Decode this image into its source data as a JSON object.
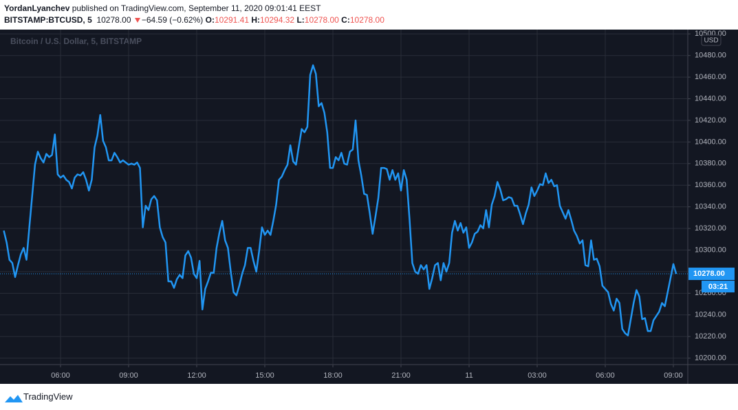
{
  "header": {
    "author": "YordanLyanchev",
    "published": "published on TradingView.com, September 11, 2020 09:01:41 EEST",
    "symbol": "BITSTAMP:BTCUSD, 5",
    "last": "10278.00",
    "change": "−64.59 (−0.62%)",
    "ohlc": [
      {
        "key": "O:",
        "value": "10291.41"
      },
      {
        "key": "H:",
        "value": "10294.32"
      },
      {
        "key": "L:",
        "value": "10278.00"
      },
      {
        "key": "C:",
        "value": "10278.00"
      }
    ]
  },
  "footer": "TradingView",
  "chart_data": {
    "type": "line",
    "watermark": "Bitcoin / U.S. Dollar, 5, BITSTAMP",
    "currency": "USD",
    "color": "#2196f3",
    "grid": true,
    "last_price": {
      "value": 10278,
      "label": "10278.00"
    },
    "countdown": "03:21",
    "xlim": [
      3.333,
      33.636
    ],
    "ylim": [
      10194,
      10504
    ],
    "xticks": [
      {
        "value": 6,
        "label": "06:00"
      },
      {
        "value": 9,
        "label": "09:00"
      },
      {
        "value": 12,
        "label": "12:00"
      },
      {
        "value": 15,
        "label": "15:00"
      },
      {
        "value": 18,
        "label": "18:00"
      },
      {
        "value": 21,
        "label": "21:00"
      },
      {
        "value": 24,
        "label": "11"
      },
      {
        "value": 27,
        "label": "03:00"
      },
      {
        "value": 30,
        "label": "06:00"
      },
      {
        "value": 33,
        "label": "09:00"
      }
    ],
    "yticks": [
      {
        "value": 10200,
        "label": "10200.00"
      },
      {
        "value": 10220,
        "label": "10220.00"
      },
      {
        "value": 10240,
        "label": "10240.00"
      },
      {
        "value": 10260,
        "label": "10260.00"
      },
      {
        "value": 10280,
        "label": "10280.00"
      },
      {
        "value": 10300,
        "label": "10300.00"
      },
      {
        "value": 10320,
        "label": "10320.00"
      },
      {
        "value": 10340,
        "label": "10340.00"
      },
      {
        "value": 10360,
        "label": "10360.00"
      },
      {
        "value": 10380,
        "label": "10380.00"
      },
      {
        "value": 10400,
        "label": "10400.00"
      },
      {
        "value": 10420,
        "label": "10420.00"
      },
      {
        "value": 10440,
        "label": "10440.00"
      },
      {
        "value": 10460,
        "label": "10460.00"
      },
      {
        "value": 10480,
        "label": "10480.00"
      },
      {
        "value": 10500,
        "label": "10500.00"
      }
    ],
    "x": [
      3.5,
      3.625,
      3.75,
      3.875,
      4,
      4.125,
      4.25,
      4.375,
      4.5,
      4.625,
      4.75,
      4.875,
      5,
      5.125,
      5.25,
      5.375,
      5.5,
      5.625,
      5.75,
      5.875,
      6,
      6.125,
      6.25,
      6.375,
      6.5,
      6.625,
      6.75,
      6.875,
      7,
      7.125,
      7.25,
      7.375,
      7.5,
      7.625,
      7.75,
      7.875,
      8,
      8.125,
      8.25,
      8.375,
      8.5,
      8.625,
      8.75,
      8.875,
      9,
      9.125,
      9.25,
      9.375,
      9.5,
      9.625,
      9.75,
      9.875,
      10,
      10.125,
      10.25,
      10.375,
      10.5,
      10.625,
      10.75,
      10.875,
      11,
      11.125,
      11.25,
      11.375,
      11.5,
      11.625,
      11.75,
      11.875,
      12,
      12.125,
      12.25,
      12.375,
      12.5,
      12.625,
      12.75,
      12.875,
      13,
      13.125,
      13.25,
      13.375,
      13.5,
      13.625,
      13.75,
      13.875,
      14,
      14.125,
      14.25,
      14.375,
      14.5,
      14.625,
      14.75,
      14.875,
      15,
      15.125,
      15.25,
      15.375,
      15.5,
      15.625,
      15.75,
      15.875,
      16,
      16.125,
      16.25,
      16.375,
      16.5,
      16.625,
      16.75,
      16.875,
      17,
      17.125,
      17.25,
      17.375,
      17.5,
      17.625,
      17.75,
      17.875,
      18,
      18.125,
      18.25,
      18.375,
      18.5,
      18.625,
      18.75,
      18.875,
      19,
      19.125,
      19.25,
      19.375,
      19.5,
      19.625,
      19.75,
      19.875,
      20,
      20.125,
      20.25,
      20.375,
      20.5,
      20.625,
      20.75,
      20.875,
      21,
      21.125,
      21.25,
      21.375,
      21.5,
      21.625,
      21.75,
      21.875,
      22,
      22.125,
      22.25,
      22.375,
      22.5,
      22.625,
      22.75,
      22.875,
      23,
      23.125,
      23.25,
      23.375,
      23.5,
      23.625,
      23.75,
      23.875,
      24,
      24.125,
      24.25,
      24.375,
      24.5,
      24.625,
      24.75,
      24.875,
      25,
      25.125,
      25.25,
      25.375,
      25.5,
      25.625,
      25.75,
      25.875,
      26,
      26.125,
      26.25,
      26.375,
      26.5,
      26.625,
      26.75,
      26.875,
      27,
      27.125,
      27.25,
      27.375,
      27.5,
      27.625,
      27.75,
      27.875,
      28,
      28.125,
      28.25,
      28.375,
      28.5,
      28.625,
      28.75,
      28.875,
      29,
      29.125,
      29.25,
      29.375,
      29.5,
      29.625,
      29.75,
      29.875,
      30,
      30.125,
      30.25,
      30.375,
      30.5,
      30.625,
      30.75,
      30.875,
      31,
      31.125,
      31.25,
      31.375,
      31.5,
      31.625,
      31.75,
      31.875,
      32,
      32.125,
      32.25,
      32.375,
      32.5,
      32.625,
      32.75,
      32.875,
      33,
      33.125
    ],
    "values": [
      10318,
      10307,
      10291,
      10288,
      10275,
      10286,
      10296,
      10302,
      10291,
      10321,
      10350,
      10379,
      10391,
      10385,
      10381,
      10389,
      10386,
      10388,
      10407,
      10370,
      10367,
      10369,
      10365,
      10363,
      10357,
      10367,
      10370,
      10369,
      10372,
      10365,
      10355,
      10365,
      10395,
      10406,
      10425,
      10401,
      10395,
      10383,
      10383,
      10390,
      10386,
      10381,
      10383,
      10381,
      10379,
      10380,
      10379,
      10381,
      10376,
      10321,
      10341,
      10337,
      10347,
      10350,
      10346,
      10321,
      10312,
      10307,
      10271,
      10271,
      10265,
      10273,
      10277,
      10274,
      10295,
      10299,
      10293,
      10278,
      10274,
      10290,
      10245,
      10264,
      10271,
      10279,
      10279,
      10302,
      10316,
      10327,
      10309,
      10302,
      10280,
      10261,
      10258,
      10267,
      10278,
      10286,
      10302,
      10302,
      10290,
      10280,
      10299,
      10321,
      10314,
      10318,
      10314,
      10327,
      10342,
      10365,
      10368,
      10374,
      10379,
      10397,
      10382,
      10379,
      10396,
      10412,
      10409,
      10414,
      10462,
      10471,
      10463,
      10433,
      10436,
      10427,
      10409,
      10376,
      10376,
      10386,
      10383,
      10390,
      10380,
      10379,
      10391,
      10393,
      10420,
      10383,
      10369,
      10352,
      10351,
      10334,
      10315,
      10331,
      10348,
      10376,
      10376,
      10375,
      10365,
      10374,
      10365,
      10371,
      10355,
      10374,
      10365,
      10329,
      10288,
      10280,
      10278,
      10286,
      10282,
      10286,
      10264,
      10274,
      10286,
      10288,
      10272,
      10288,
      10280,
      10288,
      10316,
      10327,
      10318,
      10325,
      10316,
      10321,
      10302,
      10307,
      10315,
      10317,
      10323,
      10320,
      10337,
      10321,
      10342,
      10350,
      10363,
      10356,
      10346,
      10347,
      10349,
      10348,
      10341,
      10341,
      10333,
      10324,
      10334,
      10342,
      10358,
      10350,
      10355,
      10361,
      10360,
      10371,
      10362,
      10365,
      10359,
      10360,
      10341,
      10335,
      10329,
      10337,
      10328,
      10318,
      10313,
      10306,
      10309,
      10286,
      10285,
      10309,
      10291,
      10292,
      10285,
      10267,
      10264,
      10261,
      10250,
      10244,
      10255,
      10251,
      10227,
      10223,
      10221,
      10236,
      10251,
      10263,
      10257,
      10236,
      10237,
      10225,
      10225,
      10235,
      10239,
      10243,
      10251,
      10248,
      10261,
      10274,
      10287,
      10278
    ]
  }
}
